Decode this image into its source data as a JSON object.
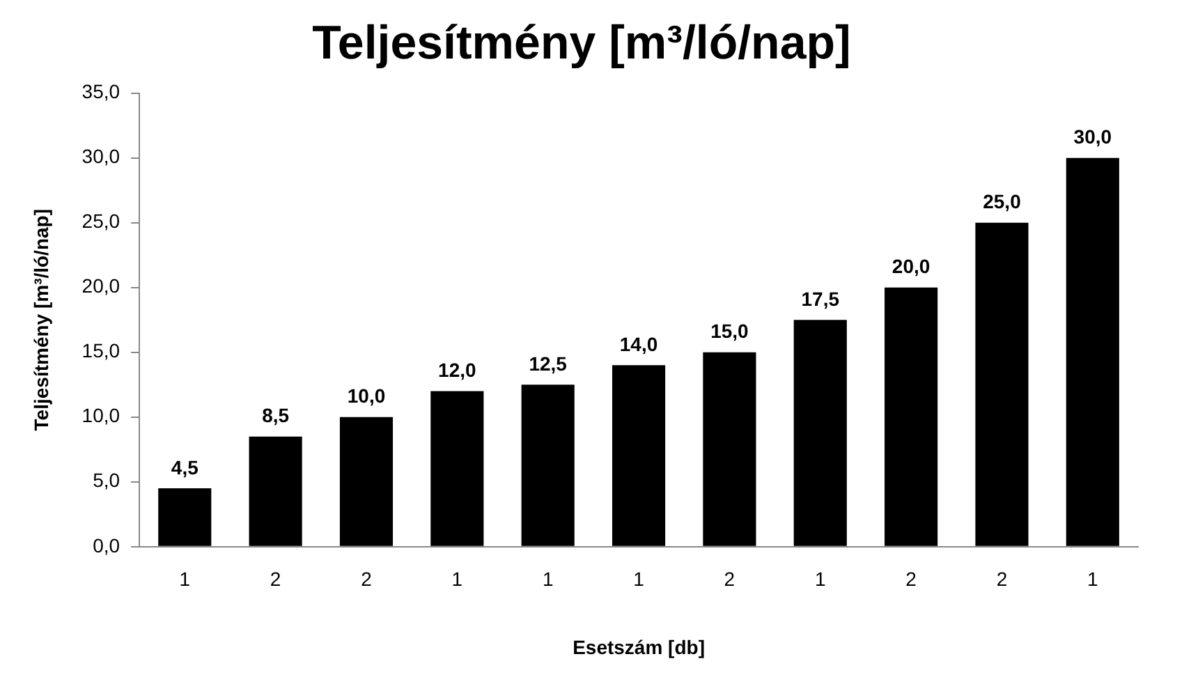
{
  "chart_data": {
    "type": "bar",
    "title": "Teljesítmény [m³/ló/nap]",
    "xlabel": "Esetszám [db]",
    "ylabel": "Teljesítmény [m³/ló/nap]",
    "categories": [
      "1",
      "2",
      "2",
      "1",
      "1",
      "1",
      "2",
      "1",
      "2",
      "2",
      "1"
    ],
    "values": [
      4.5,
      8.5,
      10.0,
      12.0,
      12.5,
      14.0,
      15.0,
      17.5,
      20.0,
      25.0,
      30.0
    ],
    "value_labels": [
      "4,5",
      "8,5",
      "10,0",
      "12,0",
      "12,5",
      "14,0",
      "15,0",
      "17,5",
      "20,0",
      "25,0",
      "30,0"
    ],
    "color": "#000000",
    "ylim": [
      0,
      35
    ],
    "yticks": [
      {
        "value": 0,
        "label": "0,0"
      },
      {
        "value": 5,
        "label": "5,0"
      },
      {
        "value": 10,
        "label": "10,0"
      },
      {
        "value": 15,
        "label": "15,0"
      },
      {
        "value": 20,
        "label": "20,0"
      },
      {
        "value": 25,
        "label": "25,0"
      },
      {
        "value": 30,
        "label": "30,0"
      },
      {
        "value": 35,
        "label": "35,0"
      }
    ],
    "grid": false,
    "legend": false
  }
}
